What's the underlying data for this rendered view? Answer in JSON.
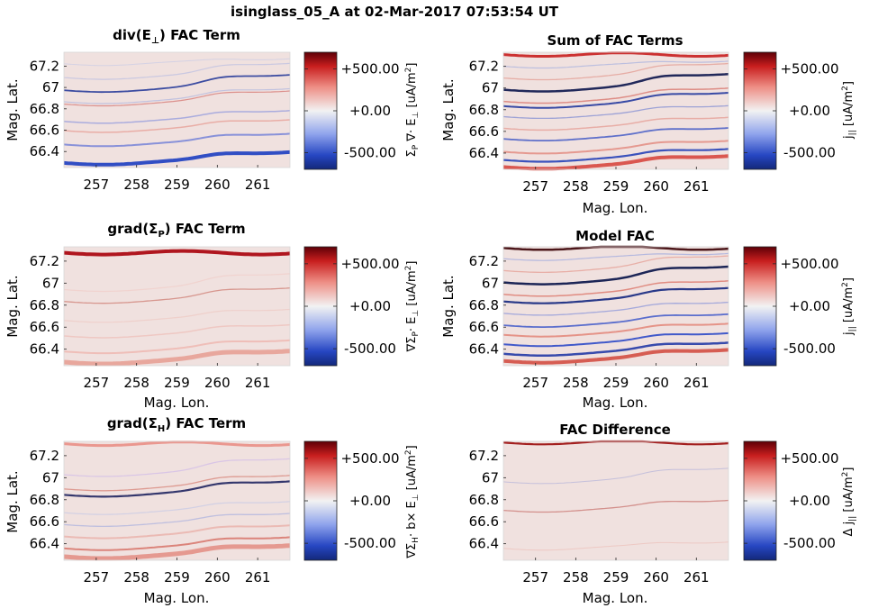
{
  "figure_title": "isinglass_05_A at 02-Mar-2017 07:53:54 UT",
  "colors": {
    "cmap_low": "#1c3aa8",
    "cmap_mid": "#f2f2f2",
    "cmap_high": "#6a0008",
    "background": "#f0e1df"
  },
  "chart_data": [
    {
      "type": "heatmap",
      "title": "div(E⊥) FAC Term",
      "title_main": "div(E",
      "title_sub": "⊥",
      "title_end": ") FAC Term",
      "xlabel": "",
      "ylabel": "Mag. Lat.",
      "xticks": [
        257,
        258,
        259,
        260,
        261
      ],
      "yticks": [
        66.4,
        66.6,
        66.8,
        67,
        67.2
      ],
      "ytick_labels": [
        "66.4",
        "66.6",
        "66.8",
        "67",
        "67.2"
      ],
      "xlim": [
        256.2,
        261.8
      ],
      "ylim": [
        66.25,
        67.33
      ],
      "colorbar": {
        "ticks": [
          "+500.00",
          "+0.00",
          "-500.00"
        ],
        "range": [
          -700,
          700
        ],
        "label": "ΣP ∇· E⊥ [uA/m2]"
      }
    },
    {
      "type": "heatmap",
      "title": "Sum of FAC Terms",
      "title_main": "Sum of FAC Terms",
      "title_sub": "",
      "title_end": "",
      "xlabel": "Mag. Lon.",
      "ylabel": "Mag. Lat.",
      "xticks": [
        257,
        258,
        259,
        260,
        261
      ],
      "yticks": [
        66.4,
        66.6,
        66.8,
        67,
        67.2
      ],
      "ytick_labels": [
        "66.4",
        "66.6",
        "66.8",
        "67",
        "67.2"
      ],
      "xlim": [
        256.2,
        261.8
      ],
      "ylim": [
        66.25,
        67.33
      ],
      "colorbar": {
        "ticks": [
          "+500.00",
          "+0.00",
          "-500.00"
        ],
        "range": [
          -700,
          700
        ],
        "label": "j|| [uA/m2]"
      }
    },
    {
      "type": "heatmap",
      "title": "grad(ΣP) FAC Term",
      "title_main": "grad(Σ",
      "title_sub": "P",
      "title_end": ") FAC Term",
      "xlabel": "Mag. Lon.",
      "ylabel": "Mag. Lat.",
      "xticks": [
        257,
        258,
        259,
        260,
        261
      ],
      "yticks": [
        66.4,
        66.6,
        66.8,
        67,
        67.2
      ],
      "ytick_labels": [
        "66.4",
        "66.6",
        "66.8",
        "67",
        "67.2"
      ],
      "xlim": [
        256.2,
        261.8
      ],
      "ylim": [
        66.25,
        67.33
      ],
      "colorbar": {
        "ticks": [
          "+500.00",
          "+0.00",
          "-500.00"
        ],
        "range": [
          -700,
          700
        ],
        "label": "∇ΣP· E⊥ [uA/m2]"
      }
    },
    {
      "type": "heatmap",
      "title": "Model FAC",
      "title_main": "Model FAC",
      "title_sub": "",
      "title_end": "",
      "xlabel": "Mag. Lon.",
      "ylabel": "Mag. Lat.",
      "xticks": [
        257,
        258,
        259,
        260,
        261
      ],
      "yticks": [
        66.4,
        66.6,
        66.8,
        67,
        67.2
      ],
      "ytick_labels": [
        "66.4",
        "66.6",
        "66.8",
        "67",
        "67.2"
      ],
      "xlim": [
        256.2,
        261.8
      ],
      "ylim": [
        66.25,
        67.33
      ],
      "colorbar": {
        "ticks": [
          "+500.00",
          "+0.00",
          "-500.00"
        ],
        "range": [
          -700,
          700
        ],
        "label": "j|| [uA/m2]"
      }
    },
    {
      "type": "heatmap",
      "title": "grad(ΣH) FAC Term",
      "title_main": "grad(Σ",
      "title_sub": "H",
      "title_end": ") FAC Term",
      "xlabel": "Mag. Lon.",
      "ylabel": "Mag. Lat.",
      "xticks": [
        257,
        258,
        259,
        260,
        261
      ],
      "yticks": [
        66.4,
        66.6,
        66.8,
        67,
        67.2
      ],
      "ytick_labels": [
        "66.4",
        "66.6",
        "66.8",
        "67",
        "67.2"
      ],
      "xlim": [
        256.2,
        261.8
      ],
      "ylim": [
        66.25,
        67.33
      ],
      "colorbar": {
        "ticks": [
          "+500.00",
          "+0.00",
          "-500.00"
        ],
        "range": [
          -700,
          700
        ],
        "label": "∇ΣH· b× E⊥ [uA/m2]"
      }
    },
    {
      "type": "heatmap",
      "title": "FAC Difference",
      "title_main": "FAC Difference",
      "title_sub": "",
      "title_end": "",
      "xlabel": "Mag. Lon.",
      "ylabel": "",
      "xticks": [
        257,
        258,
        259,
        260,
        261
      ],
      "yticks": [
        66.4,
        66.6,
        66.8,
        67,
        67.2
      ],
      "ytick_labels": [
        "66.4",
        "66.6",
        "66.8",
        "67",
        "67.2"
      ],
      "xlim": [
        256.2,
        261.8
      ],
      "ylim": [
        66.25,
        67.33
      ],
      "colorbar": {
        "ticks": [
          "+500.00",
          "+0.00",
          "-500.00"
        ],
        "range": [
          -700,
          700
        ],
        "label": "Δ j|| [uA/m2]"
      }
    }
  ]
}
